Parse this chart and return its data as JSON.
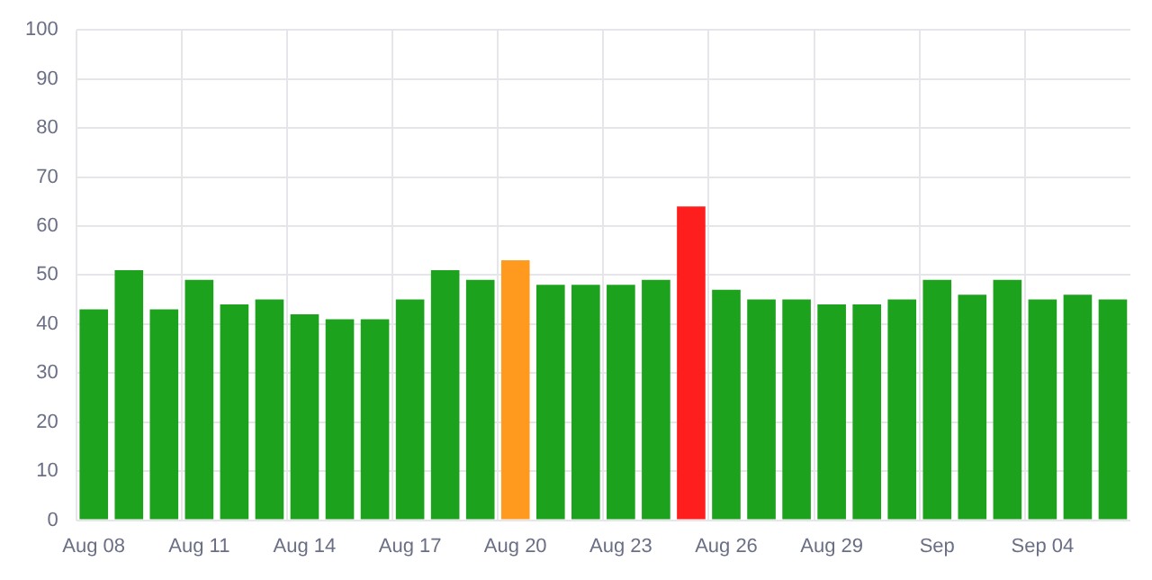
{
  "chart_data": {
    "type": "bar",
    "categories": [
      "Aug 08",
      null,
      null,
      "Aug 11",
      null,
      null,
      "Aug 14",
      null,
      null,
      "Aug 17",
      null,
      null,
      "Aug 20",
      null,
      null,
      "Aug 23",
      null,
      null,
      "Aug 26",
      null,
      null,
      "Aug 29",
      null,
      null,
      "Sep",
      null,
      null,
      "Sep 04",
      null,
      null
    ],
    "values": [
      43,
      51,
      43,
      49,
      44,
      45,
      42,
      41,
      41,
      45,
      51,
      49,
      53,
      48,
      48,
      48,
      49,
      64,
      47,
      45,
      45,
      44,
      44,
      45,
      49,
      46,
      49,
      45,
      46,
      45
    ],
    "colors": [
      "#1ca21c",
      "#1ca21c",
      "#1ca21c",
      "#1ca21c",
      "#1ca21c",
      "#1ca21c",
      "#1ca21c",
      "#1ca21c",
      "#1ca21c",
      "#1ca21c",
      "#1ca21c",
      "#1ca21c",
      "#ff9a1e",
      "#1ca21c",
      "#1ca21c",
      "#1ca21c",
      "#1ca21c",
      "#ff1e1e",
      "#1ca21c",
      "#1ca21c",
      "#1ca21c",
      "#1ca21c",
      "#1ca21c",
      "#1ca21c",
      "#1ca21c",
      "#1ca21c",
      "#1ca21c",
      "#1ca21c",
      "#1ca21c",
      "#1ca21c"
    ],
    "ylim": [
      0,
      100
    ],
    "yticks": [
      0,
      10,
      20,
      30,
      40,
      50,
      60,
      70,
      80,
      90,
      100
    ],
    "grid": true,
    "legend": false
  }
}
